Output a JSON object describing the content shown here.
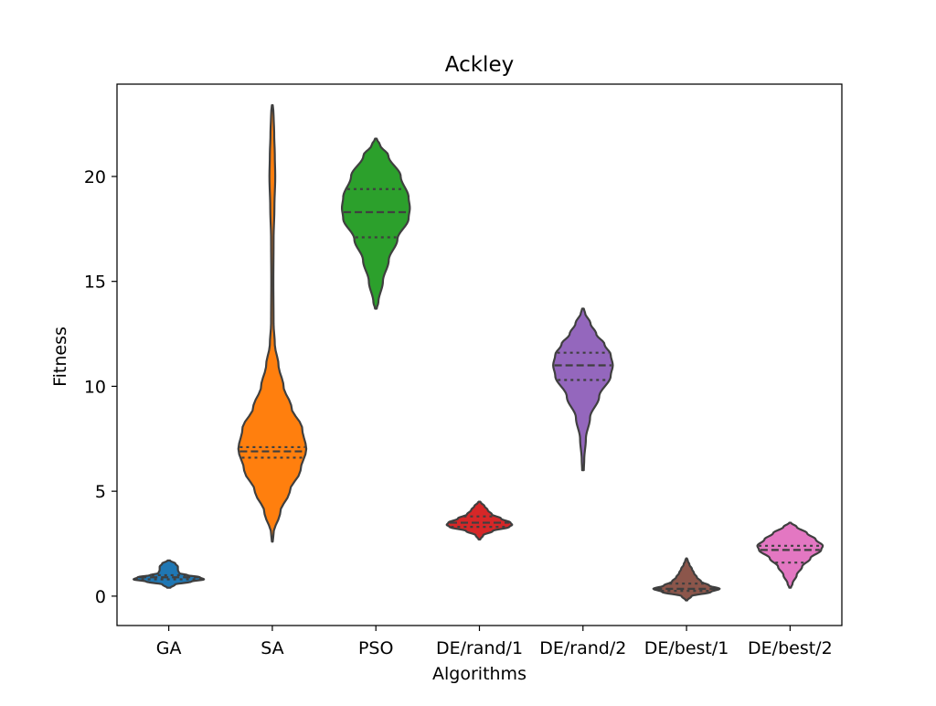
{
  "chart_data": {
    "type": "violin",
    "title": "Ackley",
    "xlabel": "Algorithms",
    "ylabel": "Fitness",
    "ylim": [
      -1.4,
      24.4
    ],
    "yticks": [
      0,
      5,
      10,
      15,
      20
    ],
    "grid": false,
    "categories": [
      "GA",
      "SA",
      "PSO",
      "DE/rand/1",
      "DE/rand/2",
      "DE/best/1",
      "DE/best/2"
    ],
    "series": [
      {
        "color": "#1f77b4",
        "min": 0.4,
        "max": 1.7,
        "q1": 0.8,
        "median": 0.9,
        "q3": 1.0,
        "profile": [
          [
            0.4,
            0.04
          ],
          [
            0.55,
            0.15
          ],
          [
            0.7,
            0.55
          ],
          [
            0.8,
            0.85
          ],
          [
            0.9,
            0.75
          ],
          [
            1.0,
            0.45
          ],
          [
            1.1,
            0.25
          ],
          [
            1.25,
            0.22
          ],
          [
            1.4,
            0.22
          ],
          [
            1.55,
            0.16
          ],
          [
            1.7,
            0.03
          ]
        ]
      },
      {
        "color": "#ff7f0e",
        "min": 2.6,
        "max": 23.4,
        "q1": 6.6,
        "median": 6.9,
        "q3": 7.1,
        "profile": [
          [
            2.6,
            0.01
          ],
          [
            3.0,
            0.03
          ],
          [
            4.0,
            0.19
          ],
          [
            5.0,
            0.42
          ],
          [
            6.0,
            0.68
          ],
          [
            7.0,
            0.82
          ],
          [
            8.0,
            0.72
          ],
          [
            9.0,
            0.46
          ],
          [
            10.0,
            0.27
          ],
          [
            11.0,
            0.15
          ],
          [
            12.0,
            0.06
          ],
          [
            13.0,
            0.03
          ],
          [
            15.0,
            0.025
          ],
          [
            17.0,
            0.03
          ],
          [
            18.5,
            0.05
          ],
          [
            20.0,
            0.07
          ],
          [
            21.0,
            0.06
          ],
          [
            22.0,
            0.045
          ],
          [
            23.0,
            0.03
          ],
          [
            23.4,
            0.01
          ]
        ]
      },
      {
        "color": "#2ca02c",
        "min": 13.7,
        "max": 21.8,
        "q1": 17.1,
        "median": 18.3,
        "q3": 19.4,
        "profile": [
          [
            13.7,
            0.02
          ],
          [
            14.0,
            0.06
          ],
          [
            15.0,
            0.17
          ],
          [
            16.0,
            0.31
          ],
          [
            17.0,
            0.52
          ],
          [
            18.0,
            0.79
          ],
          [
            18.5,
            0.82
          ],
          [
            19.0,
            0.79
          ],
          [
            20.0,
            0.6
          ],
          [
            21.0,
            0.3
          ],
          [
            21.5,
            0.1
          ],
          [
            21.8,
            0.02
          ]
        ]
      },
      {
        "color": "#d62728",
        "min": 2.7,
        "max": 4.5,
        "q1": 3.3,
        "median": 3.5,
        "q3": 3.8,
        "profile": [
          [
            2.7,
            0.02
          ],
          [
            2.9,
            0.09
          ],
          [
            3.1,
            0.32
          ],
          [
            3.3,
            0.72
          ],
          [
            3.4,
            0.79
          ],
          [
            3.5,
            0.75
          ],
          [
            3.7,
            0.52
          ],
          [
            3.9,
            0.3
          ],
          [
            4.1,
            0.2
          ],
          [
            4.3,
            0.12
          ],
          [
            4.45,
            0.04
          ],
          [
            4.5,
            0.02
          ]
        ]
      },
      {
        "color": "#9467bd",
        "min": 6.0,
        "max": 13.7,
        "q1": 10.3,
        "median": 11.0,
        "q3": 11.6,
        "profile": [
          [
            6.0,
            0.02
          ],
          [
            6.5,
            0.03
          ],
          [
            7.5,
            0.07
          ],
          [
            8.5,
            0.17
          ],
          [
            9.5,
            0.39
          ],
          [
            10.5,
            0.67
          ],
          [
            11.0,
            0.72
          ],
          [
            11.5,
            0.67
          ],
          [
            12.0,
            0.52
          ],
          [
            12.5,
            0.32
          ],
          [
            13.0,
            0.18
          ],
          [
            13.5,
            0.05
          ],
          [
            13.7,
            0.02
          ]
        ]
      },
      {
        "color": "#8c564b",
        "min": -0.2,
        "max": 1.8,
        "q1": 0.25,
        "median": 0.35,
        "q3": 0.6,
        "profile": [
          [
            -0.2,
            0.02
          ],
          [
            0.0,
            0.12
          ],
          [
            0.2,
            0.59
          ],
          [
            0.35,
            0.8
          ],
          [
            0.5,
            0.55
          ],
          [
            0.7,
            0.35
          ],
          [
            0.9,
            0.25
          ],
          [
            1.1,
            0.18
          ],
          [
            1.3,
            0.13
          ],
          [
            1.5,
            0.07
          ],
          [
            1.7,
            0.03
          ],
          [
            1.8,
            0.01
          ]
        ]
      },
      {
        "color": "#e377c2",
        "min": 0.4,
        "max": 3.5,
        "q1": 1.6,
        "median": 2.2,
        "q3": 2.4,
        "profile": [
          [
            0.4,
            0.02
          ],
          [
            0.6,
            0.06
          ],
          [
            1.0,
            0.16
          ],
          [
            1.4,
            0.29
          ],
          [
            1.8,
            0.49
          ],
          [
            2.2,
            0.75
          ],
          [
            2.4,
            0.79
          ],
          [
            2.7,
            0.62
          ],
          [
            3.0,
            0.41
          ],
          [
            3.3,
            0.16
          ],
          [
            3.5,
            0.02
          ]
        ]
      }
    ]
  }
}
